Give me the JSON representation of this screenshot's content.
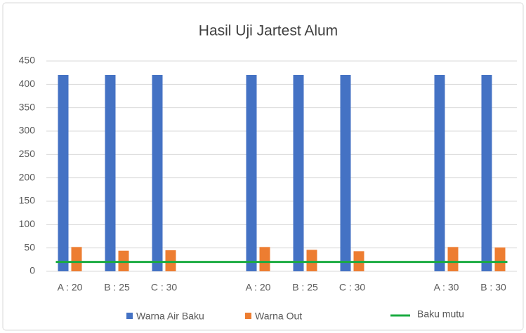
{
  "chart_data": {
    "type": "bar",
    "title": "Hasil Uji Jartest Alum",
    "categories": [
      "A : 20",
      "B : 25",
      "C : 30",
      null,
      "A : 20",
      "B : 25",
      "C : 30",
      null,
      "A : 30",
      "B : 30"
    ],
    "series": [
      {
        "name": "Warna Air Baku",
        "color": "#4472c4",
        "values": [
          420,
          420,
          420,
          null,
          420,
          420,
          420,
          null,
          420,
          420
        ]
      },
      {
        "name": "Warna Out",
        "color": "#ed7d31",
        "values": [
          52,
          44,
          45,
          null,
          52,
          46,
          43,
          null,
          52,
          51
        ]
      },
      {
        "name": "Baku mutu",
        "type": "line",
        "color": "#1aab40",
        "values": [
          20,
          20,
          20,
          20,
          20,
          20,
          20,
          20,
          20,
          20
        ]
      }
    ],
    "ylim": [
      0,
      450
    ],
    "yticks": [
      0,
      50,
      100,
      150,
      200,
      250,
      300,
      350,
      400,
      450
    ],
    "grid": true
  }
}
